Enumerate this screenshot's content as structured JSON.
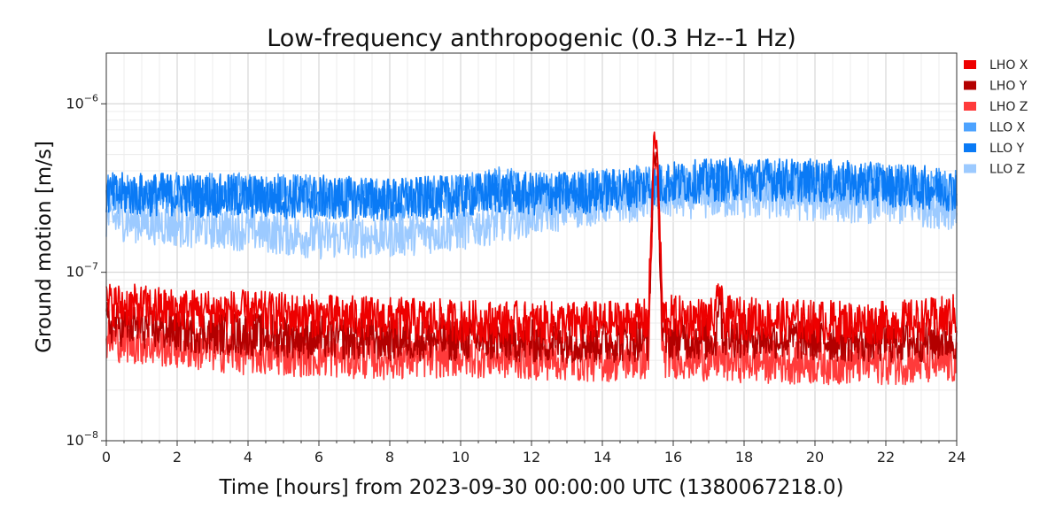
{
  "chart_data": {
    "type": "line",
    "title": "Low-frequency anthropogenic (0.3 Hz--1 Hz)",
    "xlabel": "Time [hours] from 2023-09-30 00:00:00 UTC (1380067218.0)",
    "ylabel": "Ground motion [m/s]",
    "xlim": [
      0,
      24
    ],
    "ylim": [
      1e-08,
      2e-06
    ],
    "yscale": "log",
    "grid": true,
    "legend_position": "outside-top-right",
    "x_ticks": [
      "0",
      "2",
      "4",
      "6",
      "8",
      "10",
      "12",
      "14",
      "16",
      "18",
      "20",
      "22",
      "24"
    ],
    "y_ticks": [
      {
        "value": 1e-08,
        "base": "10",
        "exp": "−8"
      },
      {
        "value": 1e-07,
        "base": "10",
        "exp": "−7"
      },
      {
        "value": 1e-06,
        "base": "10",
        "exp": "−6"
      }
    ],
    "series": [
      {
        "name": "LHO X",
        "color": "#ee0000",
        "x": [
          0,
          2,
          4,
          6,
          8,
          10,
          12,
          14,
          15.3,
          15.45,
          15.55,
          15.7,
          17.2,
          17.3,
          17.4,
          20,
          22,
          23.5,
          24
        ],
        "y": [
          6.5e-08,
          6e-08,
          5.8e-08,
          5.5e-08,
          5.3e-08,
          5.1e-08,
          5e-08,
          5e-08,
          5.2e-08,
          6.2e-07,
          5.5e-07,
          5.5e-08,
          5.2e-08,
          9e-08,
          5.4e-08,
          5.1e-08,
          5e-08,
          5.3e-08,
          5.6e-08
        ]
      },
      {
        "name": "LHO Y",
        "color": "#b30000",
        "x": [
          0,
          2,
          4,
          6,
          8,
          10,
          12,
          14,
          15.3,
          15.45,
          15.55,
          15.7,
          17.2,
          17.3,
          17.4,
          20,
          22,
          24
        ],
        "y": [
          5e-08,
          4.5e-08,
          4.3e-08,
          4.1e-08,
          4e-08,
          4e-08,
          3.9e-08,
          3.9e-08,
          4e-08,
          5e-07,
          4.5e-07,
          4.1e-08,
          4e-08,
          8.5e-08,
          4.2e-08,
          4e-08,
          3.9e-08,
          4e-08
        ]
      },
      {
        "name": "LHO Z",
        "color": "#ff3b3b",
        "x": [
          0,
          2,
          4,
          6,
          8,
          10,
          12,
          14,
          15.3,
          15.45,
          15.55,
          15.7,
          17.2,
          17.3,
          17.4,
          20,
          22,
          24
        ],
        "y": [
          4e-08,
          3.6e-08,
          3.3e-08,
          3.2e-08,
          3.1e-08,
          3.2e-08,
          3.1e-08,
          3e-08,
          3.1e-08,
          4.5e-07,
          4e-07,
          3.2e-08,
          3e-08,
          3.2e-08,
          3e-08,
          2.9e-08,
          2.9e-08,
          2.9e-08
        ]
      },
      {
        "name": "LLO X",
        "color": "#4da3ff",
        "x": [
          0,
          2,
          4,
          6,
          8,
          10,
          11,
          12,
          14,
          16,
          18,
          20,
          22,
          24
        ],
        "y": [
          2.8e-07,
          2.9e-07,
          2.9e-07,
          2.8e-07,
          2.7e-07,
          2.8e-07,
          3.2e-07,
          3e-07,
          3.1e-07,
          3.3e-07,
          3.5e-07,
          3.4e-07,
          3.3e-07,
          3e-07
        ]
      },
      {
        "name": "LLO Y",
        "color": "#0a7af5",
        "x": [
          0,
          2,
          4,
          6,
          8,
          10,
          11,
          12,
          14,
          16,
          18,
          20,
          22,
          24
        ],
        "y": [
          2.9e-07,
          2.9e-07,
          2.8e-07,
          2.8e-07,
          2.7e-07,
          2.8e-07,
          3e-07,
          2.9e-07,
          3e-07,
          3.4e-07,
          3.6e-07,
          3.5e-07,
          3.3e-07,
          3.1e-07
        ]
      },
      {
        "name": "LLO Z",
        "color": "#9ccaff",
        "x": [
          0,
          2,
          4,
          6,
          8,
          10,
          12,
          14,
          16,
          18,
          20,
          22,
          24
        ],
        "y": [
          2.1e-07,
          1.9e-07,
          1.8e-07,
          1.6e-07,
          1.65e-07,
          1.8e-07,
          2.2e-07,
          2.6e-07,
          2.8e-07,
          2.8e-07,
          2.7e-07,
          2.6e-07,
          2.4e-07
        ]
      }
    ]
  }
}
